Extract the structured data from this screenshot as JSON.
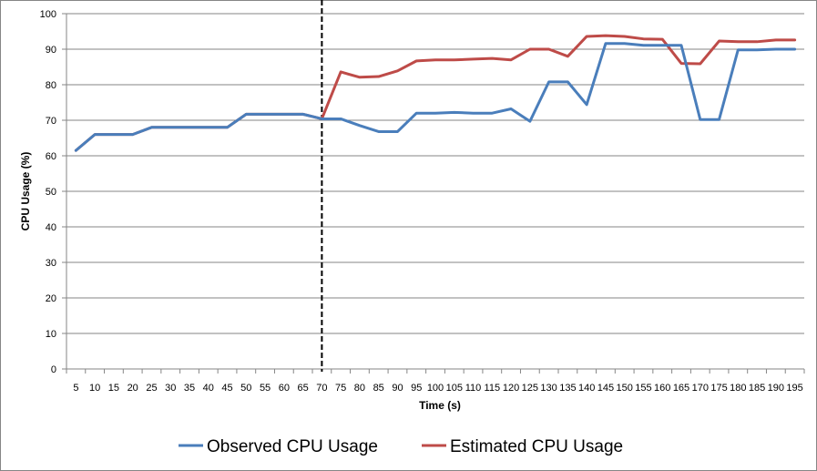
{
  "chart_data": {
    "type": "line",
    "title": "",
    "xlabel": "Time (s)",
    "ylabel": "CPU Usage (%)",
    "ylim": [
      0,
      100
    ],
    "yticks": [
      0,
      10,
      20,
      30,
      40,
      50,
      60,
      70,
      80,
      90,
      100
    ],
    "x": [
      5,
      10,
      15,
      20,
      25,
      30,
      35,
      40,
      45,
      50,
      55,
      60,
      65,
      70,
      75,
      80,
      85,
      90,
      95,
      100,
      105,
      110,
      115,
      120,
      125,
      130,
      135,
      140,
      145,
      150,
      155,
      160,
      165,
      170,
      175,
      180,
      185,
      190,
      195
    ],
    "x_tick_labels": [
      "5",
      "10",
      "15",
      "20",
      "25",
      "30",
      "35",
      "40",
      "45",
      "50",
      "55",
      "60",
      "65",
      "70",
      "75",
      "80",
      "85",
      "90",
      "95",
      "100",
      "105",
      "110",
      "115",
      "120",
      "125",
      "130",
      "135",
      "140",
      "145",
      "150",
      "155",
      "160",
      "165",
      "170",
      "175",
      "180",
      "185",
      "190",
      "195"
    ],
    "grid": "horizontal",
    "legend_position": "bottom",
    "vertical_marker": {
      "x": 70,
      "style": "dashed",
      "color": "#000000"
    },
    "series": [
      {
        "name": "Observed CPU Usage",
        "color": "#4a7ebb",
        "values": [
          61.5,
          66,
          66,
          66,
          68,
          68,
          68,
          68,
          68,
          71.7,
          71.7,
          71.7,
          71.7,
          70.4,
          70.4,
          68.5,
          66.8,
          66.8,
          72,
          72,
          72.2,
          72,
          72,
          73.2,
          69.7,
          80.8,
          80.8,
          74.4,
          91.6,
          91.6,
          91.1,
          91.1,
          91.1,
          70.2,
          70.2,
          89.8,
          89.8,
          90,
          90
        ]
      },
      {
        "name": "Estimated CPU Usage",
        "color": "#be4b48",
        "values": [
          61.5,
          66,
          66,
          66,
          68,
          68,
          68,
          68,
          68,
          71.7,
          71.7,
          71.7,
          71.7,
          70.4,
          83.6,
          82.1,
          82.3,
          83.9,
          86.7,
          87,
          87,
          87.2,
          87.4,
          87,
          90,
          90,
          88,
          93.6,
          93.8,
          93.6,
          92.9,
          92.8,
          86,
          85.9,
          92.3,
          92.1,
          92.1,
          92.6,
          92.6
        ]
      }
    ]
  }
}
